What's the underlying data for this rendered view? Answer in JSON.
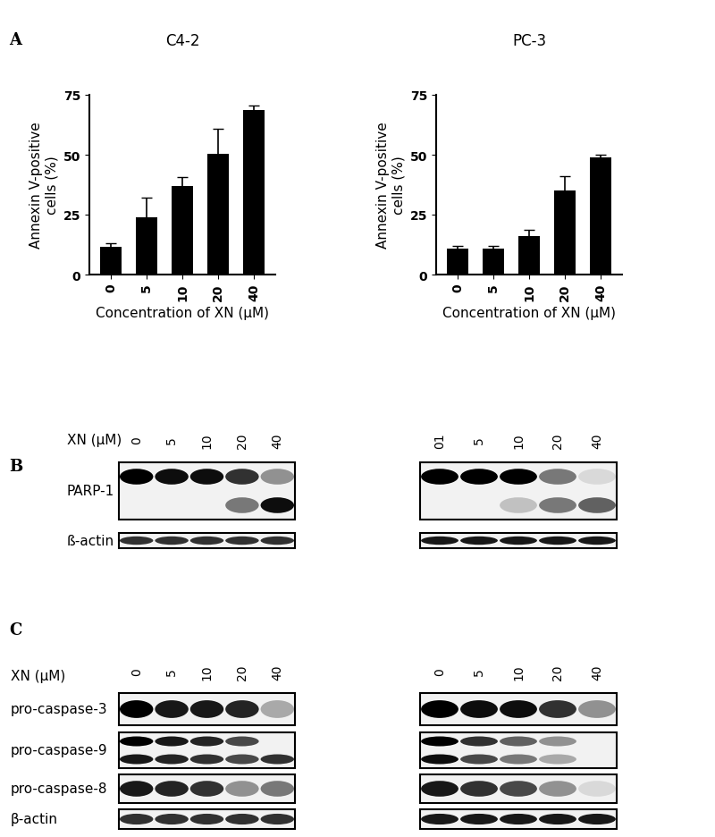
{
  "chart_data": [
    {
      "type": "bar",
      "title": "C4-2",
      "categories": [
        "0",
        "5",
        "10",
        "20",
        "40"
      ],
      "values": [
        11.5,
        24,
        37,
        50.5,
        68.5
      ],
      "errors": [
        1.5,
        8,
        3.5,
        10.5,
        2
      ],
      "color": "#000000",
      "xlabel": "Concentration of XN (μM)",
      "ylabel": "Annexin V-positive\ncells (%)",
      "ylim": [
        0,
        75
      ],
      "yticks": [
        0,
        25,
        50,
        75
      ]
    },
    {
      "type": "bar",
      "title": "PC-3",
      "categories": [
        "0",
        "5",
        "10",
        "20",
        "40"
      ],
      "values": [
        11,
        11,
        16,
        35,
        49
      ],
      "errors": [
        1,
        1,
        2.5,
        6,
        1
      ],
      "color": "#000000",
      "xlabel": "Concentration of XN (μM)",
      "ylabel": "Annexin V-positive\ncells (%)",
      "ylim": [
        0,
        75
      ],
      "yticks": [
        0,
        25,
        50,
        75
      ]
    }
  ],
  "panel_label": "A",
  "panels": [
    {
      "label": "B",
      "lane_title": "XN (μM)",
      "row_labels": [
        "PARP-1",
        "ß-actin"
      ],
      "blots": [
        {
          "lanes": [
            "0",
            "5",
            "10",
            "20",
            "40"
          ],
          "rows": [
            [
              [
                1,
                0.95,
                0.95,
                0.8,
                0.4
              ],
              [
                0,
                0,
                0,
                0.5,
                0.95
              ]
            ],
            [
              [
                0.8,
                0.8,
                0.8,
                0.8,
                0.8
              ]
            ]
          ]
        },
        {
          "lanes": [
            "01",
            "5",
            "10",
            "20",
            "40"
          ],
          "rows": [
            [
              [
                1,
                1,
                1,
                0.5,
                0.1
              ],
              [
                0,
                0,
                0.2,
                0.5,
                0.6
              ]
            ],
            [
              [
                0.9,
                0.9,
                0.9,
                0.9,
                0.9
              ]
            ]
          ]
        }
      ]
    },
    {
      "label": "C",
      "lane_title": "XN (μM)",
      "row_labels": [
        "pro-caspase-3",
        "pro-caspase-9",
        "pro-caspase-8",
        "β-actin"
      ],
      "blots": [
        {
          "lanes": [
            "0",
            "5",
            "10",
            "20",
            "40"
          ],
          "rows": [
            [
              [
                1,
                0.9,
                0.9,
                0.85,
                0.3
              ]
            ],
            [
              [
                1,
                0.9,
                0.85,
                0.7,
                0
              ],
              [
                0.9,
                0.85,
                0.8,
                0.7,
                0.8
              ]
            ],
            [
              [
                0.9,
                0.85,
                0.8,
                0.4,
                0.5
              ]
            ],
            [
              [
                0.8,
                0.8,
                0.8,
                0.8,
                0.8
              ]
            ]
          ]
        },
        {
          "lanes": [
            "0",
            "5",
            "10",
            "20",
            "40"
          ],
          "rows": [
            [
              [
                1,
                0.95,
                0.95,
                0.8,
                0.4
              ]
            ],
            [
              [
                1,
                0.8,
                0.6,
                0.4,
                0
              ],
              [
                0.95,
                0.7,
                0.5,
                0.3,
                0
              ]
            ],
            [
              [
                0.9,
                0.8,
                0.7,
                0.4,
                0.1
              ]
            ],
            [
              [
                0.9,
                0.9,
                0.9,
                0.9,
                0.9
              ]
            ]
          ]
        }
      ]
    }
  ]
}
